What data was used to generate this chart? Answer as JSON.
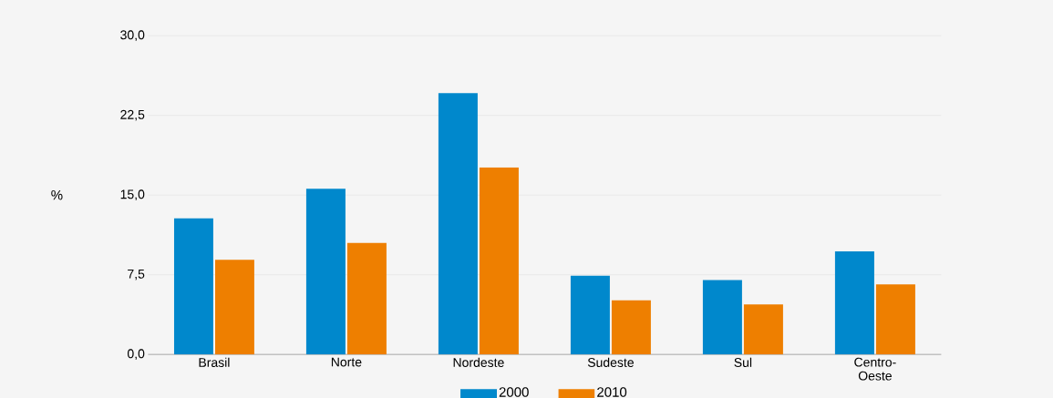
{
  "chart_data": {
    "type": "bar",
    "ylabel": "%",
    "categories": [
      "Brasil",
      "Norte",
      "Nordeste",
      "Sudeste",
      "Sul",
      "Centro-Oeste"
    ],
    "series": [
      {
        "name": "2000",
        "color": "#0088cc",
        "values": [
          12.8,
          15.6,
          24.6,
          7.4,
          7.0,
          9.7
        ]
      },
      {
        "name": "2010",
        "color": "#ee7f00",
        "values": [
          8.9,
          10.5,
          17.6,
          5.1,
          4.7,
          6.6
        ]
      }
    ],
    "ylim": [
      0,
      30
    ],
    "yticks": [
      {
        "value": 0,
        "label": "0,0"
      },
      {
        "value": 7.5,
        "label": "7,5"
      },
      {
        "value": 15,
        "label": "15,0"
      },
      {
        "value": 22.5,
        "label": "22,5"
      },
      {
        "value": 30,
        "label": "30,0"
      }
    ],
    "grid": "y",
    "legend": "bottom"
  }
}
